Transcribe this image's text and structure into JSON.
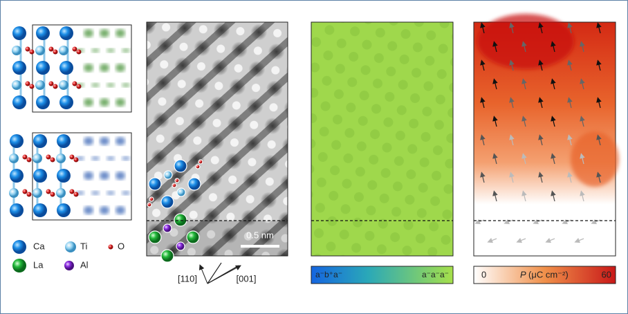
{
  "legend": [
    {
      "label": "Ca"
    },
    {
      "label": "Ti"
    },
    {
      "label": "O"
    },
    {
      "label": "La"
    },
    {
      "label": "Al"
    }
  ],
  "stem_image": {
    "scale_bar": "0.5 nm",
    "directions": [
      "[110]",
      "[001]"
    ]
  },
  "tilt_colorbar": {
    "left_label": "a⁻b⁺a⁻",
    "right_label": "a⁻a⁻a⁻"
  },
  "polarization_colorbar": {
    "min": 0,
    "symbol": "P",
    "unit": "(μC cm⁻²)",
    "max": 60
  }
}
